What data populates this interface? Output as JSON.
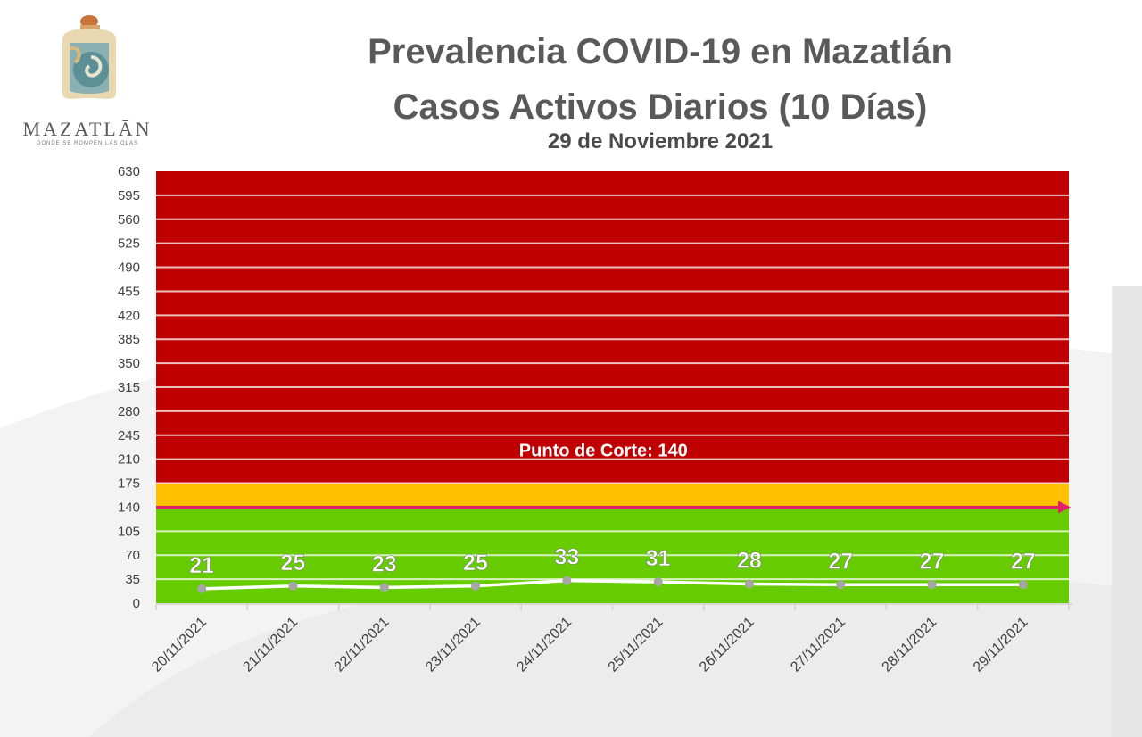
{
  "logo": {
    "name": "MAZATLĀN",
    "tagline": "DONDE SE ROMPEN LAS OLAS"
  },
  "title_line1": "Prevalencia COVID-19 en Mazatlán",
  "title_line2": "Casos Activos Diarios (10 Días)",
  "subtitle": "29 de Noviembre 2021",
  "colors": {
    "red_zone": "#c00000",
    "orange_zone": "#ffc000",
    "green_zone": "#66cc00",
    "cutoff_line": "#e0206a",
    "series_line": "#ffffff",
    "marker": "#a6a6a6"
  },
  "chart_data": {
    "type": "line",
    "title": "Prevalencia COVID-19 en Mazatlán",
    "x": [
      "20/11/2021",
      "21/11/2021",
      "22/11/2021",
      "23/11/2021",
      "24/11/2021",
      "25/11/2021",
      "26/11/2021",
      "27/11/2021",
      "28/11/2021",
      "29/11/2021"
    ],
    "series": [
      {
        "values": [
          21,
          25,
          23,
          25,
          33,
          31,
          28,
          27,
          27,
          27
        ]
      }
    ],
    "ylim": [
      0,
      630
    ],
    "yticks": [
      0,
      35,
      70,
      105,
      140,
      175,
      210,
      245,
      280,
      315,
      350,
      385,
      420,
      455,
      490,
      525,
      560,
      595,
      630
    ],
    "zones": [
      {
        "from": 0,
        "to": 140,
        "color": "#66cc00"
      },
      {
        "from": 140,
        "to": 175,
        "color": "#ffc000"
      },
      {
        "from": 175,
        "to": 630,
        "color": "#c00000"
      }
    ],
    "cutoff": {
      "value": 140,
      "label": "Punto de Corte: 140"
    },
    "grid": true,
    "legend": "none"
  }
}
